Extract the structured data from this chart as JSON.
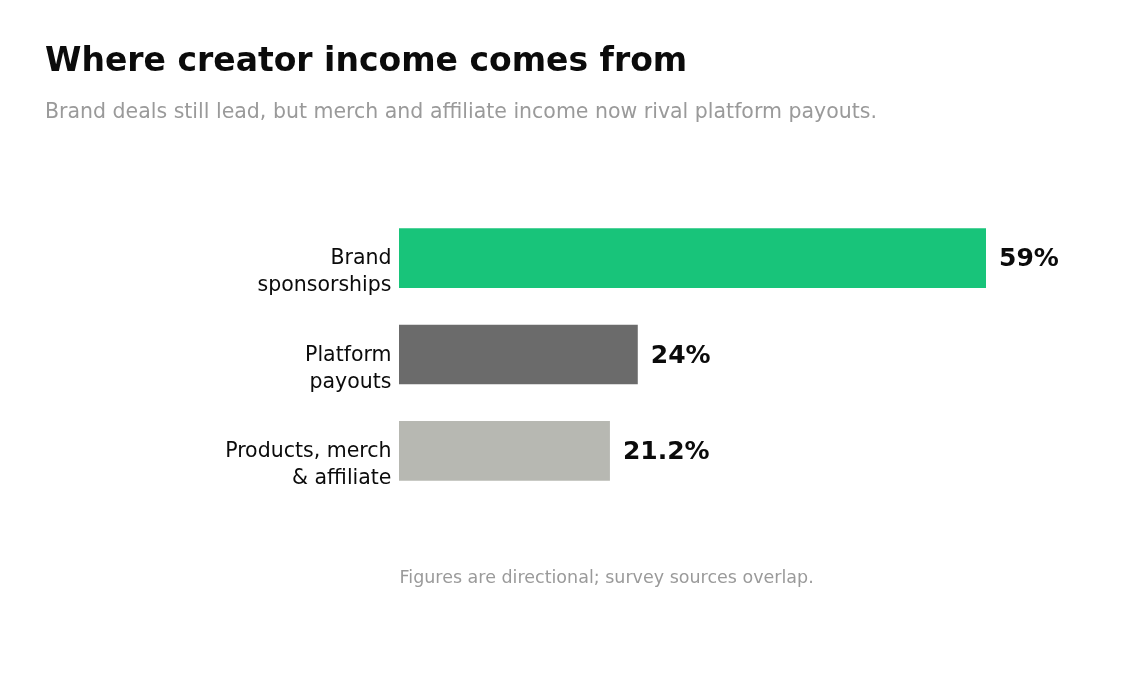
{
  "chart_data": {
    "type": "bar",
    "orientation": "horizontal",
    "title": "Where creator income comes from",
    "subtitle": "Brand deals still lead, but merch and affiliate income now rival platform payouts.",
    "categories": [
      "Brand sponsorships",
      "Platform payouts",
      "Products, merch & affiliate"
    ],
    "values": [
      59,
      24,
      21.2
    ],
    "colors": [
      "#18c47a",
      "#6b6b6b",
      "#b7b8b2"
    ],
    "value_labels": [
      "59%",
      "24%",
      "21.2%"
    ],
    "tick_labels": "y",
    "annotations": [
      "Figures are directional; survey sources overlap."
    ]
  }
}
